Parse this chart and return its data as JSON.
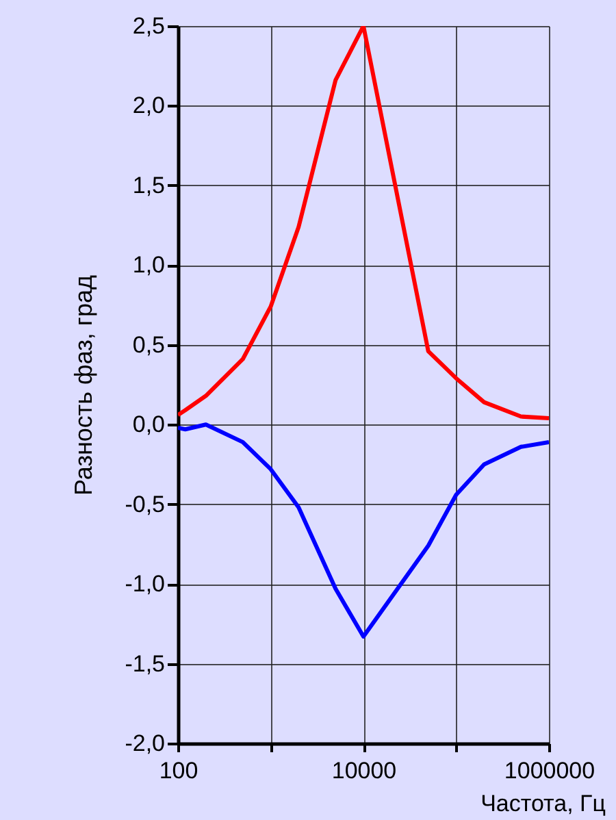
{
  "chart_data": {
    "type": "line",
    "xlabel": "Частота, Гц",
    "ylabel": "Разность фаз, град",
    "x": [
      100,
      120,
      200,
      500,
      1000,
      2000,
      5000,
      10000,
      50000,
      100000,
      200000,
      500000,
      1000000
    ],
    "series": [
      {
        "color": "#ff0000",
        "values": [
          0.06,
          0.09,
          0.18,
          0.41,
          0.74,
          1.24,
          2.16,
          2.5,
          0.46,
          0.29,
          0.14,
          0.05,
          0.04
        ]
      },
      {
        "color": "#0000ff",
        "values": [
          -0.02,
          -0.03,
          0.0,
          -0.11,
          -0.28,
          -0.52,
          -1.03,
          -1.33,
          -0.76,
          -0.44,
          -0.25,
          -0.14,
          -0.11
        ]
      }
    ],
    "log": "x",
    "xlim": [
      100,
      1000000
    ],
    "xticks": [
      100,
      {
        "value": 1000,
        "label": null
      },
      10000,
      {
        "value": 100000,
        "label": null
      },
      1000000
    ],
    "ylim": [
      -2.0,
      2.5
    ],
    "yticks": [
      {
        "value": -2.0,
        "label": "-2,0"
      },
      {
        "value": -1.5,
        "label": "-1,5"
      },
      {
        "value": -1.0,
        "label": "-1,0"
      },
      {
        "value": -0.5,
        "label": "-0,5"
      },
      {
        "value": 0.0,
        "label": "0,0"
      },
      {
        "value": 0.5,
        "label": "0,5"
      },
      {
        "value": 1.0,
        "label": "1,0"
      },
      {
        "value": 1.5,
        "label": "1,5"
      },
      {
        "value": 2.0,
        "label": "2,0"
      },
      {
        "value": 2.5,
        "label": "2,5"
      }
    ],
    "grid": true,
    "line_style": "solid"
  }
}
